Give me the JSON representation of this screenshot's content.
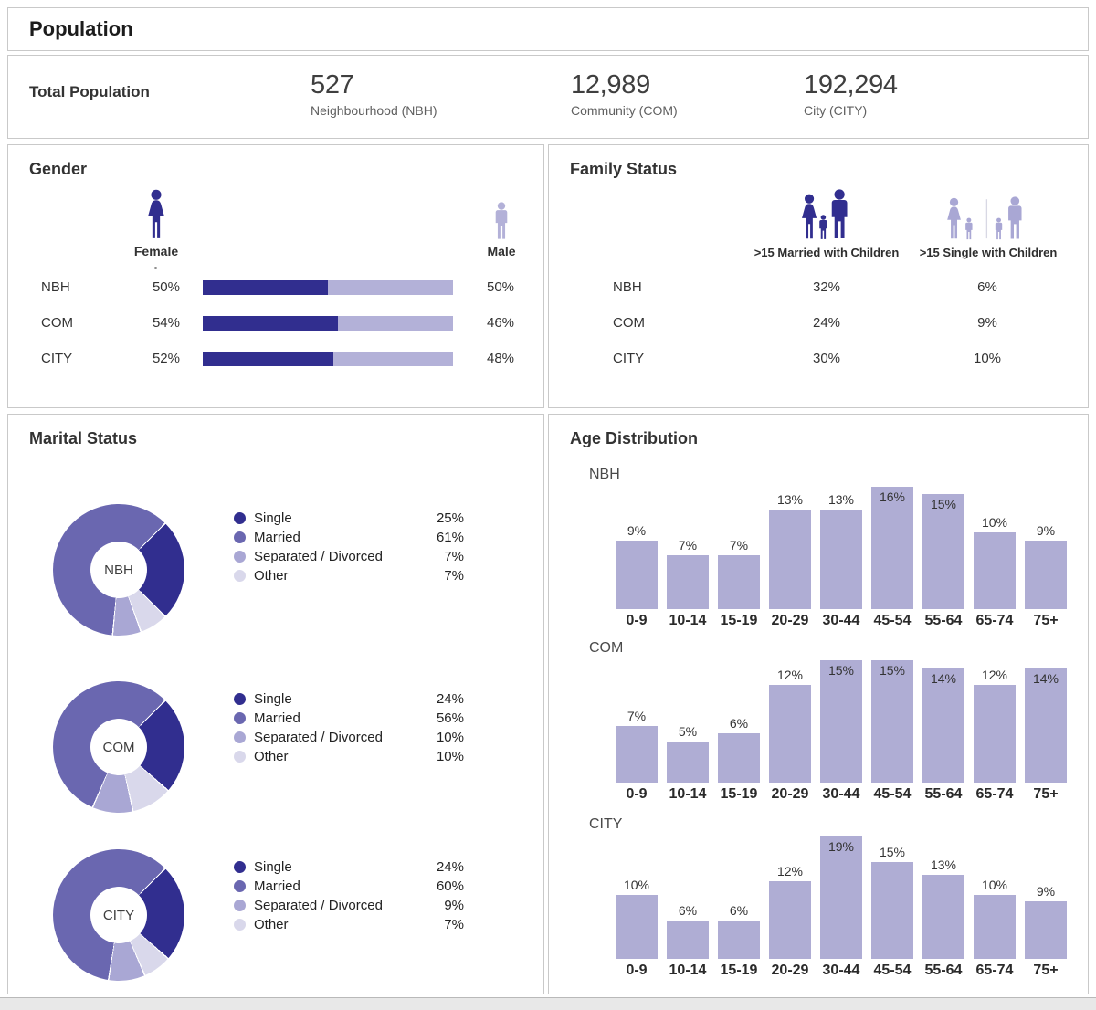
{
  "header": {
    "title": "Population"
  },
  "total_population": {
    "label": "Total Population",
    "stats": [
      {
        "value": "527",
        "label": "Neighbourhood (NBH)"
      },
      {
        "value": "12,989",
        "label": "Community (COM)"
      },
      {
        "value": "192,294",
        "label": "City (CITY)"
      }
    ]
  },
  "sections": {
    "gender": {
      "title": "Gender",
      "female_label": "Female",
      "male_label": "Male"
    },
    "family_status": {
      "title": "Family Status",
      "married_label": ">15 Married with Children",
      "single_label": ">15 Single with Children"
    },
    "marital_status": {
      "title": "Marital Status"
    },
    "age_distribution": {
      "title": "Age Distribution"
    }
  },
  "chart_data": [
    {
      "type": "bar",
      "title": "Gender",
      "layout": "stacked-horizontal",
      "unit": "%",
      "categories": [
        "NBH",
        "COM",
        "CITY"
      ],
      "series": [
        {
          "name": "Female",
          "values": [
            50,
            54,
            52
          ]
        },
        {
          "name": "Male",
          "values": [
            50,
            46,
            48
          ]
        }
      ]
    },
    {
      "type": "table",
      "title": "Family Status",
      "unit": "%",
      "columns": [
        ">15 Married with Children",
        ">15 Single with Children"
      ],
      "categories": [
        "NBH",
        "COM",
        "CITY"
      ],
      "rows": [
        {
          "label": "NBH",
          "values": [
            32,
            6
          ]
        },
        {
          "label": "COM",
          "values": [
            24,
            9
          ]
        },
        {
          "label": "CITY",
          "values": [
            30,
            10
          ]
        }
      ]
    },
    {
      "type": "pie",
      "title": "Marital Status",
      "unit": "%",
      "donut": true,
      "legend": [
        "Single",
        "Married",
        "Separated / Divorced",
        "Other"
      ],
      "charts": [
        {
          "label": "NBH",
          "values": [
            25,
            61,
            7,
            7
          ]
        },
        {
          "label": "COM",
          "values": [
            24,
            56,
            10,
            10
          ]
        },
        {
          "label": "CITY",
          "values": [
            24,
            60,
            9,
            7
          ]
        }
      ]
    },
    {
      "type": "bar",
      "title": "Age Distribution",
      "unit": "%",
      "categories": [
        "0-9",
        "10-14",
        "15-19",
        "20-29",
        "30-44",
        "45-54",
        "55-64",
        "65-74",
        "75+"
      ],
      "charts": [
        {
          "label": "NBH",
          "values": [
            9,
            7,
            7,
            13,
            13,
            16,
            15,
            10,
            9
          ]
        },
        {
          "label": "COM",
          "values": [
            7,
            5,
            6,
            12,
            15,
            15,
            14,
            12,
            14
          ]
        },
        {
          "label": "CITY",
          "values": [
            10,
            6,
            6,
            12,
            19,
            15,
            13,
            10,
            9
          ]
        }
      ]
    }
  ],
  "colors": {
    "single_dark_navy": "#312E8F",
    "married_mid_purple": "#6A67B0",
    "separated_light_purple": "#A9A7D4",
    "other_pale_purple": "#D9D8EB",
    "age_bar_purple": "#AFADD4",
    "male_bar_purple": "#B3B1D8",
    "panel_border": "#c9c9c9"
  }
}
